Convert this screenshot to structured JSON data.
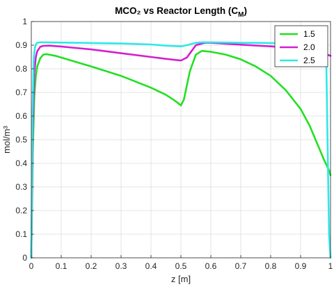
{
  "chart_data": {
    "type": "line",
    "title_main": "MCO₂ vs Reactor Length (C",
    "title_sub": "M",
    "title_close": ")",
    "xlabel": "z [m]",
    "ylabel": "mol/m³",
    "xlim": [
      0,
      1
    ],
    "ylim": [
      0,
      1
    ],
    "xticks": [
      "0",
      "0.1",
      "0.2",
      "0.3",
      "0.4",
      "0.5",
      "0.6",
      "0.7",
      "0.8",
      "0.9",
      "1"
    ],
    "yticks": [
      "0",
      "0.1",
      "0.2",
      "0.3",
      "0.4",
      "0.5",
      "0.6",
      "0.7",
      "0.8",
      "0.9",
      "1"
    ],
    "grid": true,
    "legend_position": "top-right",
    "series": [
      {
        "name": "1.5",
        "color": "#22e022",
        "x": [
          0,
          0.005,
          0.01,
          0.015,
          0.02,
          0.03,
          0.04,
          0.05,
          0.08,
          0.12,
          0.16,
          0.2,
          0.25,
          0.3,
          0.35,
          0.4,
          0.45,
          0.48,
          0.5,
          0.51,
          0.53,
          0.55,
          0.57,
          0.6,
          0.65,
          0.7,
          0.75,
          0.8,
          0.85,
          0.9,
          0.93,
          0.96,
          0.98,
          0.995,
          1.0
        ],
        "y": [
          0,
          0.45,
          0.68,
          0.77,
          0.81,
          0.845,
          0.86,
          0.862,
          0.855,
          0.84,
          0.825,
          0.81,
          0.79,
          0.77,
          0.745,
          0.72,
          0.69,
          0.665,
          0.645,
          0.67,
          0.79,
          0.86,
          0.876,
          0.872,
          0.86,
          0.84,
          0.81,
          0.77,
          0.71,
          0.63,
          0.56,
          0.47,
          0.41,
          0.37,
          0.35
        ]
      },
      {
        "name": "2.0",
        "color": "#d21fd2",
        "x": [
          0,
          0.005,
          0.01,
          0.015,
          0.02,
          0.03,
          0.04,
          0.06,
          0.1,
          0.2,
          0.3,
          0.4,
          0.45,
          0.5,
          0.52,
          0.55,
          0.58,
          0.6,
          0.7,
          0.8,
          0.9,
          0.95,
          1.0
        ],
        "y": [
          0,
          0.55,
          0.78,
          0.85,
          0.875,
          0.893,
          0.897,
          0.898,
          0.894,
          0.882,
          0.866,
          0.85,
          0.842,
          0.835,
          0.848,
          0.9,
          0.91,
          0.91,
          0.902,
          0.895,
          0.885,
          0.875,
          0.855
        ]
      },
      {
        "name": "2.5",
        "color": "#2ee8e8",
        "x": [
          0,
          0.004,
          0.008,
          0.012,
          0.016,
          0.02,
          0.03,
          0.04,
          0.1,
          0.2,
          0.3,
          0.4,
          0.45,
          0.5,
          0.52,
          0.55,
          0.57,
          0.6,
          0.7,
          0.8,
          0.9,
          0.95,
          0.985,
          0.99,
          0.995,
          1.0
        ],
        "y": [
          0,
          0.6,
          0.84,
          0.89,
          0.905,
          0.91,
          0.912,
          0.912,
          0.911,
          0.909,
          0.907,
          0.903,
          0.898,
          0.895,
          0.9,
          0.91,
          0.912,
          0.912,
          0.91,
          0.909,
          0.907,
          0.905,
          0.9,
          0.5,
          0.1,
          0.0
        ]
      }
    ]
  }
}
